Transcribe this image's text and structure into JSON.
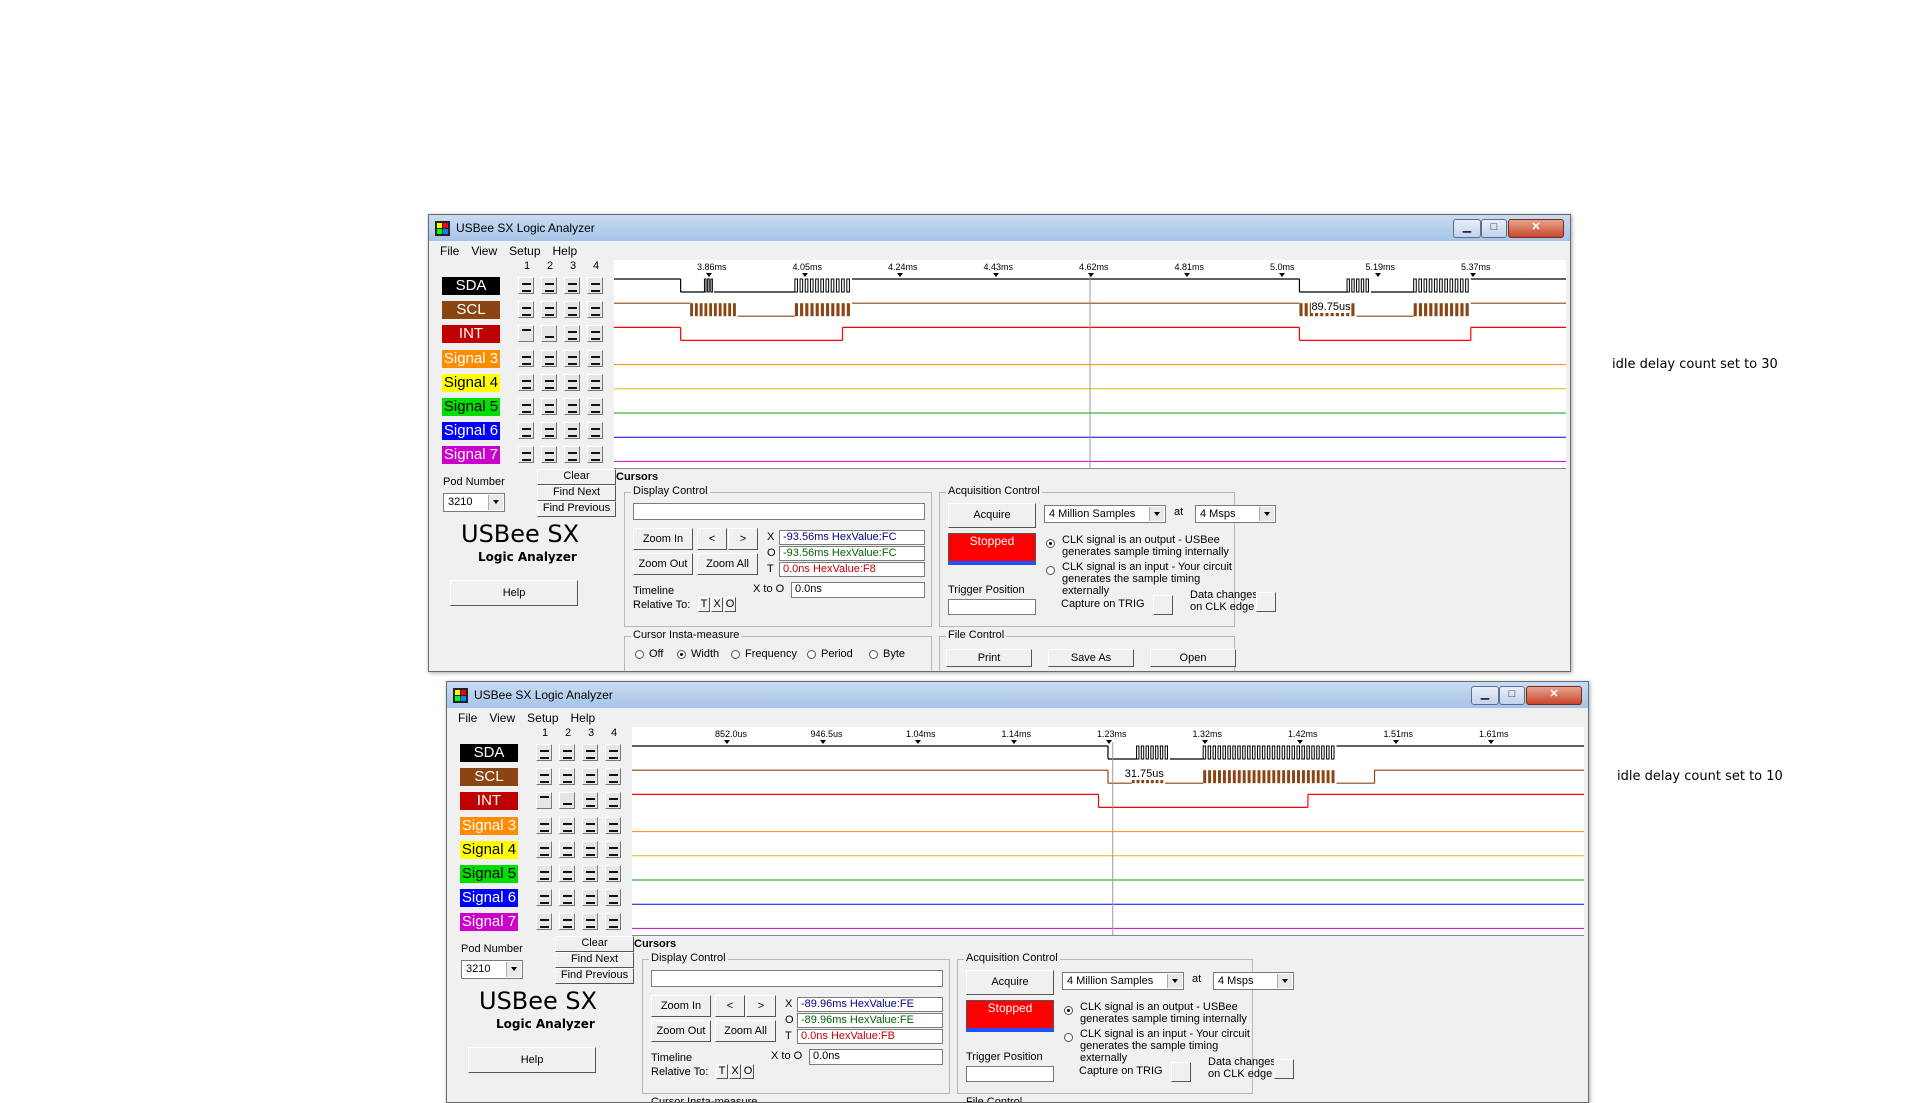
{
  "notes": [
    "idle delay count set to 30",
    "idle delay count set to 10"
  ],
  "app": {
    "title": "USBee SX Logic Analyzer",
    "menu": [
      "File",
      "View",
      "Setup",
      "Help"
    ],
    "pod_columns": [
      "1",
      "2",
      "3",
      "4"
    ],
    "signals": [
      {
        "name": "SDA",
        "bg": "#000000",
        "fg": "#ffffff",
        "trace": "#000000"
      },
      {
        "name": "SCL",
        "bg": "#8b4513",
        "fg": "#ffffff",
        "trace": "#8b4513"
      },
      {
        "name": "INT",
        "bg": "#c00000",
        "fg": "#ffffff",
        "trace": "#ff0000"
      },
      {
        "name": "Signal 3",
        "bg": "#ff8c00",
        "fg": "#ffffff",
        "trace": "#ff8c00"
      },
      {
        "name": "Signal 4",
        "bg": "#ffff00",
        "fg": "#000000",
        "trace": "#d4c000"
      },
      {
        "name": "Signal 5",
        "bg": "#00dd00",
        "fg": "#000000",
        "trace": "#00a000"
      },
      {
        "name": "Signal 6",
        "bg": "#0000ff",
        "fg": "#ffffff",
        "trace": "#0000ff"
      },
      {
        "name": "Signal 7",
        "bg": "#cc00cc",
        "fg": "#ffffff",
        "trace": "#cc00cc"
      }
    ],
    "trigger_pattern": [
      "X",
      "X",
      "X",
      "X",
      "X",
      "X",
      "X",
      "X",
      "1",
      "0",
      "X",
      "X",
      "X",
      "X",
      "X",
      "X",
      "X",
      "X",
      "X",
      "X",
      "X",
      "X",
      "X",
      "X",
      "X",
      "X",
      "X",
      "X",
      "X",
      "X",
      "X",
      "X"
    ],
    "clear": "Clear",
    "find_next": "Find Next",
    "find_previous": "Find Previous",
    "pod_number_label": "Pod Number",
    "pod_number": "3210",
    "logo": "USBee SX",
    "logo_sub": "Logic Analyzer",
    "help": "Help",
    "cursors": "Cursors",
    "display_control": "Display Control",
    "zoom_in": "Zoom In",
    "zoom_out": "Zoom Out",
    "zoom_all": "Zoom All",
    "nav_left": "<",
    "nav_right": ">",
    "timeline": "Timeline",
    "relative_to": "Relative To:",
    "rel_t": "T",
    "rel_x": "X",
    "rel_o": "O",
    "x_to_o": "X to O",
    "cursor_insta": "Cursor Insta-measure",
    "insta_options": [
      "Off",
      "Width",
      "Frequency",
      "Period",
      "Byte"
    ],
    "acq_control": "Acquisition Control",
    "acquire": "Acquire",
    "stopped": "Stopped",
    "samples": "4 Million Samples",
    "at": "at",
    "rate": "4 Msps",
    "clk_out": "CLK signal is an output - USBee generates sample timing internally",
    "clk_in": "CLK signal is an input - Your circuit generates the sample timing externally",
    "trigger_position": "Trigger Position",
    "capture_on_trig": "Capture on TRIG",
    "data_changes": "Data changes on CLK edge",
    "file_control": "File Control",
    "print": "Print",
    "save_as": "Save As",
    "open": "Open"
  },
  "windows": [
    {
      "ruler": [
        "3.86ms",
        "4.05ms",
        "4.24ms",
        "4.43ms",
        "4.62ms",
        "4.81ms",
        "5.0ms",
        "5.19ms",
        "5.37ms"
      ],
      "measure": "89.75us",
      "cursor_x": "-93.56ms HexValue:FC",
      "cursor_o": "-93.56ms HexValue:FC",
      "cursor_t": "0.0ns HexValue:F8",
      "x_to_o_value": "0.0ns"
    },
    {
      "ruler": [
        "852.0us",
        "946.5us",
        "1.04ms",
        "1.14ms",
        "1.23ms",
        "1.32ms",
        "1.42ms",
        "1.51ms",
        "1.61ms"
      ],
      "measure": "31.75us",
      "cursor_x": "-89.96ms HexValue:FE",
      "cursor_o": "-89.96ms HexValue:FE",
      "cursor_t": "0.0ns HexValue:FB",
      "x_to_o_value": "0.0ns"
    }
  ]
}
